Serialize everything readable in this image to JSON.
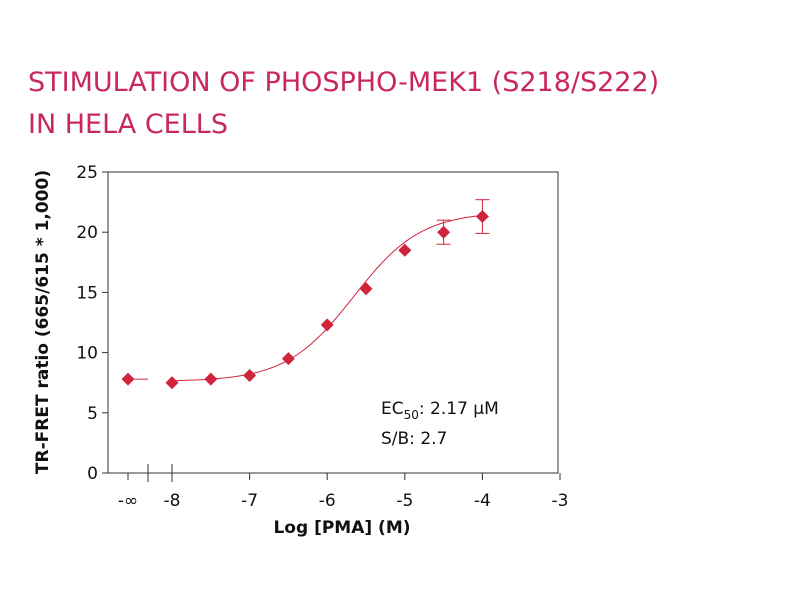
{
  "chart_data": {
    "type": "scatter",
    "title_lines": [
      "STIMULATION OF PHOSPHO-MEK1 (S218/S222)",
      "IN HELA CELLS"
    ],
    "xlabel": "Log [PMA] (M)",
    "ylabel": "TR-FRET ratio (665/615 * 1,000)",
    "xlim": [
      -3.0,
      -8.5
    ],
    "ylim": [
      0,
      25
    ],
    "x_ticks": [
      "-∞",
      "-8",
      "-7",
      "-6",
      "-5",
      "-4",
      "-3"
    ],
    "y_ticks": [
      "0",
      "5",
      "10",
      "15",
      "20",
      "25"
    ],
    "x_break": true,
    "grid": false,
    "legend": "none",
    "colors": {
      "series": "#d0243c",
      "title": "#c8285a"
    },
    "baseline_point": {
      "x": "-∞",
      "y": 7.8
    },
    "series": [
      {
        "x": [
          -8.0,
          -7.5,
          -7.0,
          -6.5,
          -6.0,
          -5.5,
          -5.0,
          -4.5,
          -4.0
        ],
        "y": [
          7.5,
          7.8,
          8.1,
          9.5,
          12.3,
          15.3,
          18.5,
          20.0,
          21.3
        ],
        "error": [
          0,
          0,
          0,
          0,
          0,
          0,
          0,
          1.0,
          1.4
        ]
      }
    ],
    "fit_curve": {
      "model": "four-parameter logistic",
      "bottom": 7.6,
      "top": 21.7,
      "log_ec50": -5.66,
      "hill_slope": 1.0,
      "x_range": [
        -8.0,
        -4.0
      ]
    },
    "annotations": {
      "ec50_label": "EC",
      "ec50_subscript": "50",
      "ec50_value": ": 2.17 µM",
      "sb": "S/B: 2.7"
    }
  }
}
